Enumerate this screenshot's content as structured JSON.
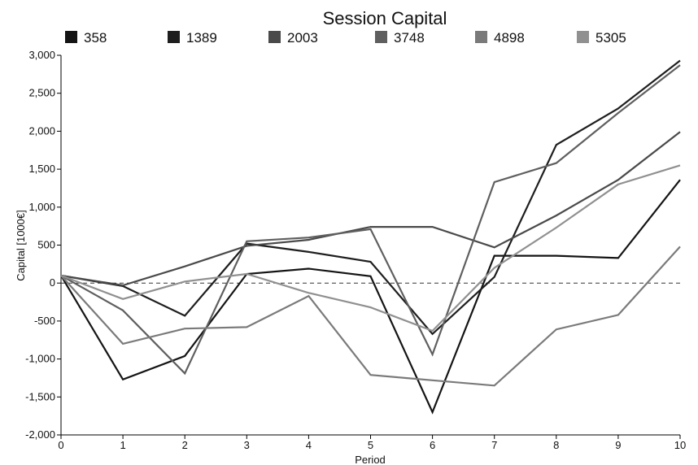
{
  "chart_data": {
    "type": "line",
    "title": "Session Capital",
    "xlabel": "Period",
    "ylabel": "Capital [1000€]",
    "x": [
      0,
      1,
      2,
      3,
      4,
      5,
      6,
      7,
      8,
      9,
      10
    ],
    "xlim": [
      0,
      10
    ],
    "ylim": [
      -2000,
      3000
    ],
    "x_ticks": [
      "0",
      "1",
      "2",
      "3",
      "4",
      "5",
      "6",
      "7",
      "8",
      "9",
      "10"
    ],
    "y_ticks": [
      {
        "value": 3000,
        "label": "3,000"
      },
      {
        "value": 2500,
        "label": "2,500"
      },
      {
        "value": 2000,
        "label": "2,000"
      },
      {
        "value": 1500,
        "label": "1,500"
      },
      {
        "value": 1000,
        "label": "1,000"
      },
      {
        "value": 500,
        "label": "500"
      },
      {
        "value": 0,
        "label": "0"
      },
      {
        "value": -500,
        "label": "-500"
      },
      {
        "value": -1000,
        "label": "-1,000"
      },
      {
        "value": -1500,
        "label": "-1,500"
      },
      {
        "value": -2000,
        "label": "-2,000"
      }
    ],
    "grid": false,
    "zero_line": "dashed",
    "legend_position": "top",
    "series": [
      {
        "name": "358",
        "color": "#141414",
        "values": [
          100,
          -1270,
          -960,
          120,
          190,
          90,
          -1700,
          360,
          360,
          330,
          1360
        ]
      },
      {
        "name": "1389",
        "color": "#1e1e1e",
        "values": [
          100,
          -40,
          -430,
          520,
          410,
          280,
          -670,
          80,
          1820,
          2300,
          2930
        ]
      },
      {
        "name": "2003",
        "color": "#4a4a4a",
        "values": [
          100,
          -30,
          220,
          490,
          570,
          740,
          740,
          470,
          890,
          1360,
          1990
        ]
      },
      {
        "name": "3748",
        "color": "#5f5f5f",
        "values": [
          100,
          -360,
          -1190,
          550,
          600,
          710,
          -940,
          1330,
          1580,
          2240,
          2870
        ]
      },
      {
        "name": "4898",
        "color": "#7a7a7a",
        "values": [
          100,
          -800,
          -600,
          -580,
          -170,
          -1210,
          -1280,
          -1350,
          -610,
          -420,
          480
        ]
      },
      {
        "name": "5305",
        "color": "#909090",
        "values": [
          100,
          -210,
          20,
          120,
          -130,
          -320,
          -630,
          200,
          730,
          1300,
          1550
        ]
      }
    ]
  }
}
